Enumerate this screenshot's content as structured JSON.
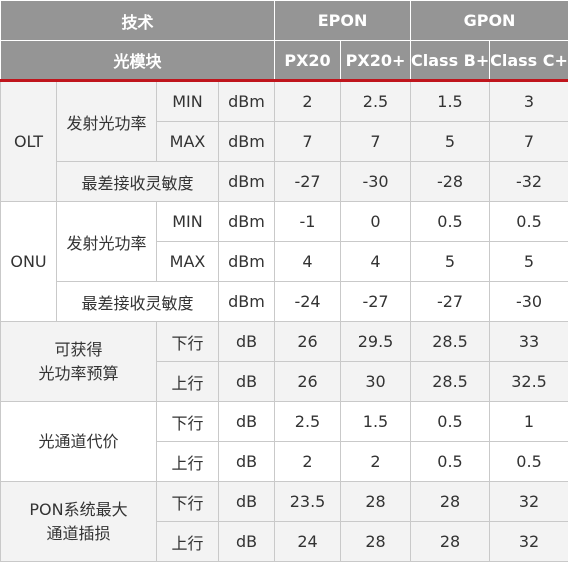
{
  "header": {
    "tech_label": "技术",
    "epon_label": "EPON",
    "gpon_label": "GPON",
    "module_label": "光模块",
    "px20": "PX20",
    "px20plus": "PX20+",
    "classbplus": "Class B+",
    "classcplus": "Class C+"
  },
  "olt": {
    "label": "OLT",
    "tx_label": "发射光功率",
    "min_label": "MIN",
    "max_label": "MAX",
    "unit_dbm": "dBm",
    "min_values": [
      "2",
      "2.5",
      "1.5",
      "3"
    ],
    "max_values": [
      "7",
      "7",
      "5",
      "7"
    ],
    "sens_label": "最差接收灵敏度",
    "sens_values": [
      "-27",
      "-30",
      "-28",
      "-32"
    ]
  },
  "onu": {
    "label": "ONU",
    "tx_label": "发射光功率",
    "min_label": "MIN",
    "max_label": "MAX",
    "unit_dbm": "dBm",
    "min_values": [
      "-1",
      "0",
      "0.5",
      "0.5"
    ],
    "max_values": [
      "4",
      "4",
      "5",
      "5"
    ],
    "sens_label": "最差接收灵敏度",
    "sens_values": [
      "-24",
      "-27",
      "-27",
      "-30"
    ]
  },
  "budget": {
    "label_line1": "可获得",
    "label_line2": "光功率预算",
    "down_label": "下行",
    "up_label": "上行",
    "unit_db": "dB",
    "down_values": [
      "26",
      "29.5",
      "28.5",
      "33"
    ],
    "up_values": [
      "26",
      "30",
      "28.5",
      "32.5"
    ]
  },
  "path_cost": {
    "label": "光通道代价",
    "down_label": "下行",
    "up_label": "上行",
    "unit_db": "dB",
    "down_values": [
      "2.5",
      "1.5",
      "0.5",
      "1"
    ],
    "up_values": [
      "2",
      "2",
      "0.5",
      "0.5"
    ]
  },
  "insertion": {
    "label_line1": "PON系统最大",
    "label_line2": "通道插损",
    "down_label": "下行",
    "up_label": "上行",
    "unit_db": "dB",
    "down_values": [
      "23.5",
      "28",
      "28",
      "32"
    ],
    "up_values": [
      "24",
      "28",
      "28",
      "32"
    ]
  },
  "colors": {
    "header_bg": "#959595",
    "accent_red": "#c0151c",
    "row_shade": "#f3f3f3"
  }
}
